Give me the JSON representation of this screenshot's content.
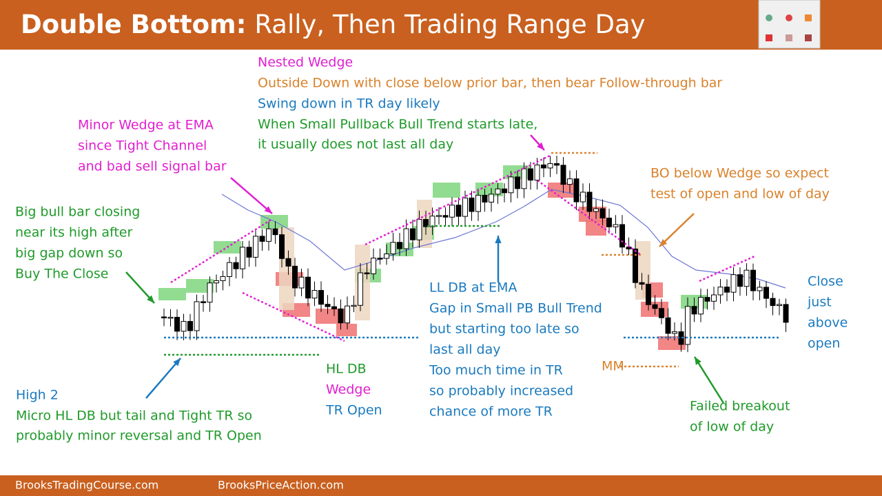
{
  "header": {
    "title_bold": "Double Bottom:",
    "title_rest": "Rally, Then Trading Range Day"
  },
  "annotations": {
    "nested": [
      "Nested Wedge",
      "Outside Down with close below prior bar, then bear Follow-through bar",
      "Swing down in TR day likely",
      "When Small Pullback Bull Trend starts late,",
      "it usually does not last all day"
    ],
    "minor_wedge": [
      "Minor Wedge at EMA",
      "since Tight Channel",
      "and bad sell signal bar"
    ],
    "big_bull": [
      "Big bull bar closing",
      "near its high after",
      "big gap down so",
      "Buy The Close"
    ],
    "bo_below": [
      "BO below Wedge so expect",
      "test of open and low of day"
    ],
    "ll_db": [
      "LL DB at EMA",
      "Gap in Small PB Bull Trend",
      "but starting too late so",
      "last all day",
      "Too much time in TR",
      "so probably increased",
      "chance of more TR"
    ],
    "hl_db": [
      "HL DB",
      "Wedge",
      "TR Open"
    ],
    "high2": [
      "High 2",
      "Micro HL DB but tail and Tight TR so",
      "probably minor reversal and TR Open"
    ],
    "mm": "MM",
    "failed": [
      "Failed breakout",
      "of low of day"
    ],
    "close": [
      "Close",
      "just",
      "above",
      "open"
    ]
  },
  "footer": {
    "left": "BrooksTradingCourse.com",
    "right": "BrooksPriceAction.com"
  }
}
